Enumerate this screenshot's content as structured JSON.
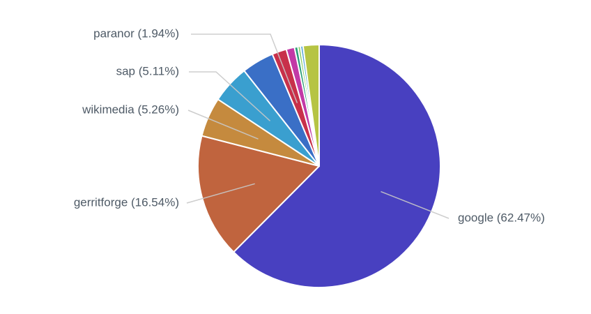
{
  "chart_data": {
    "type": "pie",
    "title": "",
    "start_angle_deg": 0,
    "direction": "clockwise",
    "slices": [
      {
        "name": "google",
        "label": "google (62.47%)",
        "value": 62.47,
        "color": "#4840c0",
        "labeled": true
      },
      {
        "name": "gerritforge",
        "label": "gerritforge (16.54%)",
        "value": 16.54,
        "color": "#c0643e",
        "labeled": true
      },
      {
        "name": "wikimedia",
        "label": "wikimedia (5.26%)",
        "value": 5.26,
        "color": "#c58a3e",
        "labeled": true
      },
      {
        "name": "sap",
        "label": "sap (5.11%)",
        "value": 5.11,
        "color": "#3a9fcf",
        "labeled": true
      },
      {
        "name": "",
        "label": "",
        "value": 4.3,
        "color": "#3a6fc6",
        "labeled": false
      },
      {
        "name": "paranor",
        "label": "paranor (1.94%)",
        "value": 1.94,
        "color": "#c8304a",
        "labeled": true
      },
      {
        "name": "",
        "label": "",
        "value": 1.1,
        "color": "#c23aa6",
        "labeled": false
      },
      {
        "name": "",
        "label": "",
        "value": 0.45,
        "color": "#2a9d7a",
        "labeled": false
      },
      {
        "name": "",
        "label": "",
        "value": 0.35,
        "color": "#8ccf6a",
        "labeled": false
      },
      {
        "name": "",
        "label": "",
        "value": 0.35,
        "color": "#5aa8d8",
        "labeled": false
      },
      {
        "name": "",
        "label": "",
        "value": 2.13,
        "color": "#b6c444",
        "labeled": false
      }
    ],
    "label_colors": {
      "text": "#4e5a66",
      "leader": "#c8c8c8"
    }
  }
}
